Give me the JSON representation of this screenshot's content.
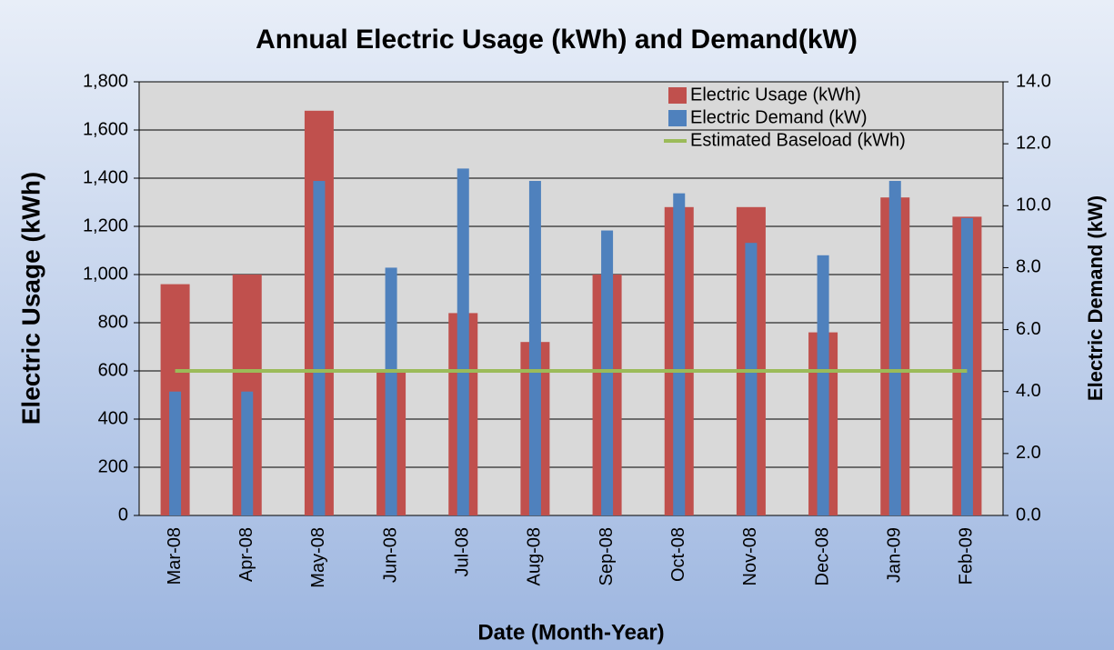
{
  "chart_data": {
    "type": "bar",
    "title": "Annual Electric Usage (kWh) and Demand(kW)",
    "x_label": "Date (Month-Year)",
    "y_label": "Electric Usage (kWh)",
    "y2_label": "Electric Demand (kW)",
    "categories": [
      "Mar-08",
      "Apr-08",
      "May-08",
      "Jun-08",
      "Jul-08",
      "Aug-08",
      "Sep-08",
      "Oct-08",
      "Nov-08",
      "Dec-08",
      "Jan-09",
      "Feb-09"
    ],
    "series": [
      {
        "name": "Electric Usage (kWh)",
        "type": "bar",
        "color": "#c0504d",
        "values": [
          960,
          1000,
          1680,
          600,
          840,
          720,
          1000,
          1280,
          1280,
          760,
          1320,
          1240
        ]
      },
      {
        "name": "Electric Demand (kW)",
        "type": "bar",
        "axis": "y2",
        "color": "#4f81bd",
        "values": [
          4.0,
          4.0,
          10.8,
          8.0,
          11.2,
          10.8,
          9.2,
          10.4,
          8.8,
          8.4,
          10.8,
          9.6
        ]
      },
      {
        "name": "Estimated Baseload (kWh)",
        "type": "line",
        "color": "#9bbb59",
        "values": [
          600,
          600,
          600,
          600,
          600,
          600,
          600,
          600,
          600,
          600,
          600,
          600
        ]
      }
    ],
    "ylim": [
      0,
      1800
    ],
    "yticks": [
      0,
      200,
      400,
      600,
      800,
      {
        "value": 1000,
        "label": "1,000"
      },
      {
        "value": 1200,
        "label": "1,200"
      },
      {
        "value": 1400,
        "label": "1,400"
      },
      {
        "value": 1600,
        "label": "1,600"
      },
      {
        "value": 1800,
        "label": "1,800"
      }
    ],
    "y2lim": [
      0,
      14
    ],
    "y2ticks": [
      {
        "value": 0,
        "label": "0.0"
      },
      {
        "value": 2,
        "label": "2.0"
      },
      {
        "value": 4,
        "label": "4.0"
      },
      {
        "value": 6,
        "label": "6.0"
      },
      {
        "value": 8,
        "label": "8.0"
      },
      {
        "value": 10,
        "label": "10.0"
      },
      {
        "value": 12,
        "label": "12.0"
      },
      {
        "value": 14,
        "label": "14.0"
      }
    ],
    "grid": true,
    "legend": "top-right"
  }
}
